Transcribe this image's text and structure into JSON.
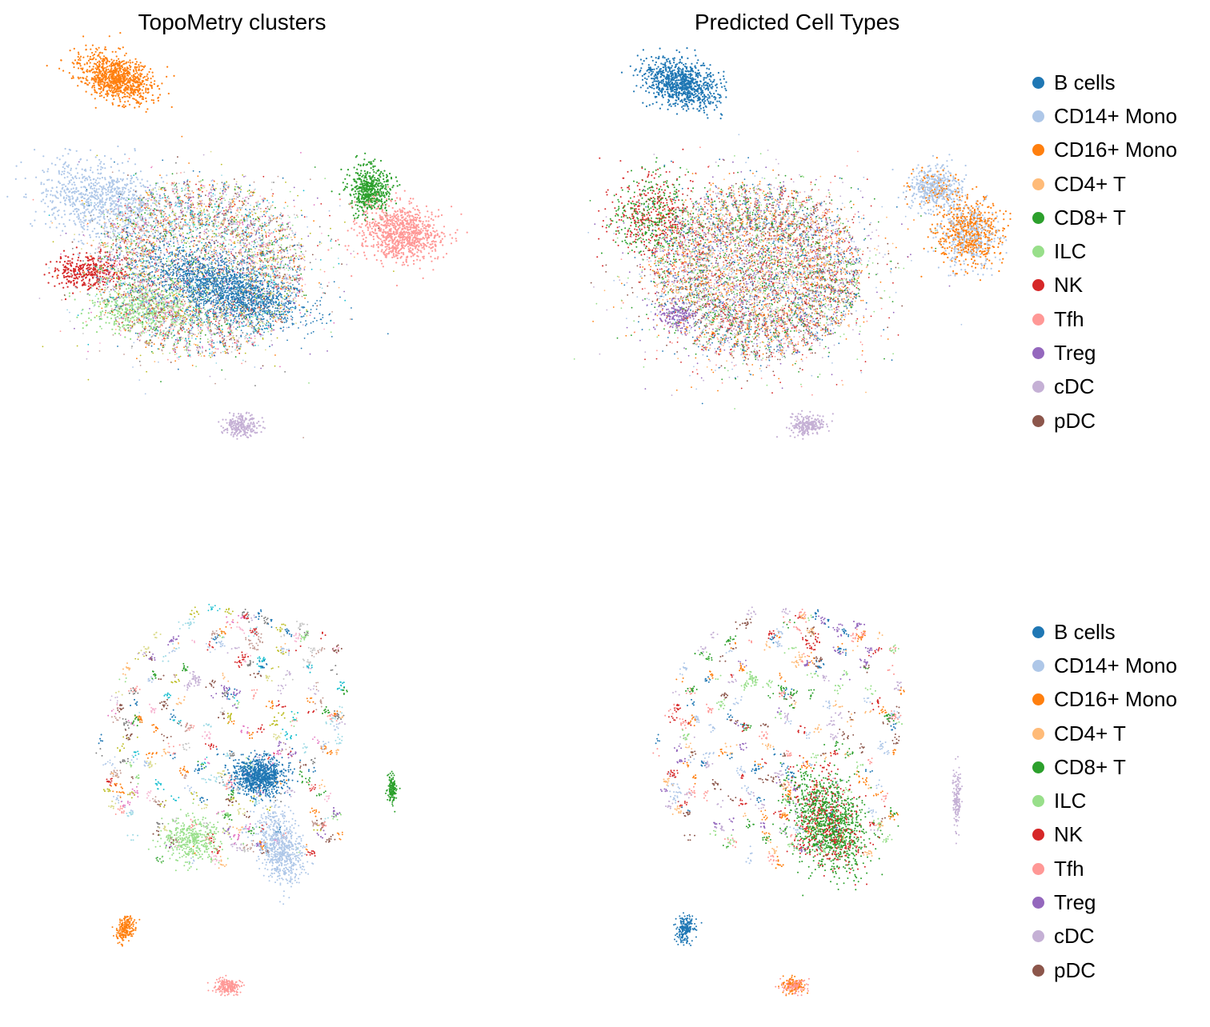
{
  "chart_data": [
    {
      "type": "scatter",
      "title": "TopoMetry clusters",
      "color_by": "cluster",
      "palette": [
        "#1f77b4",
        "#aec7e8",
        "#ff7f0e",
        "#ffbb78",
        "#2ca02c",
        "#98df8a",
        "#d62728",
        "#ff9896",
        "#9467bd",
        "#c5b0d5",
        "#8c564b",
        "#c49c94",
        "#e377c2",
        "#f7b6d2",
        "#7f7f7f",
        "#c7c7c7",
        "#bcbd22",
        "#dbdb8d",
        "#17becf",
        "#9edae5"
      ],
      "legend": "none",
      "grid": false
    },
    {
      "type": "scatter",
      "title": "Predicted Cell Types",
      "color_by": "cell_type",
      "legend": "right",
      "grid": false
    },
    {
      "type": "scatter",
      "title": "",
      "color_by": "cluster",
      "legend": "none",
      "grid": false
    },
    {
      "type": "scatter",
      "title": "",
      "color_by": "cell_type",
      "legend": "right",
      "grid": false
    }
  ],
  "legend": [
    {
      "label": "B cells",
      "color": "#1f77b4"
    },
    {
      "label": "CD14+ Mono",
      "color": "#aec7e8"
    },
    {
      "label": "CD16+ Mono",
      "color": "#ff7f0e"
    },
    {
      "label": "CD4+ T",
      "color": "#ffbb78"
    },
    {
      "label": "CD8+ T",
      "color": "#2ca02c"
    },
    {
      "label": "ILC",
      "color": "#98df8a"
    },
    {
      "label": "NK",
      "color": "#d62728"
    },
    {
      "label": "Tfh",
      "color": "#ff9896"
    },
    {
      "label": "Treg",
      "color": "#9467bd"
    },
    {
      "label": "cDC",
      "color": "#c5b0d5"
    },
    {
      "label": "pDC",
      "color": "#8c564b"
    }
  ]
}
